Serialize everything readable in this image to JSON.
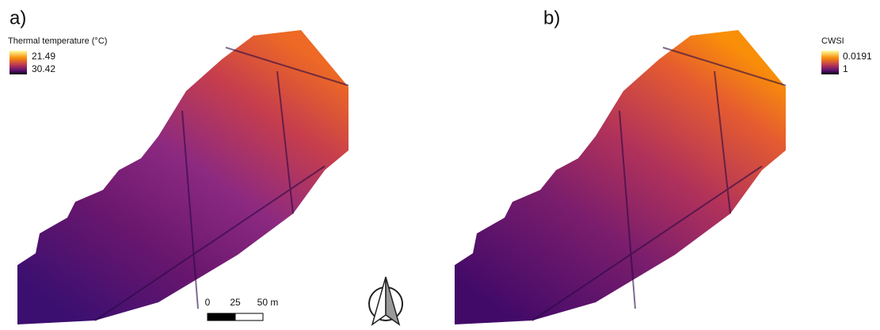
{
  "panels": [
    {
      "label": "a)",
      "legend": {
        "title": "Thermal temperature (°C)",
        "max_label": "21.49",
        "min_label": "30.42"
      }
    },
    {
      "label": "b)",
      "legend": {
        "title": "CWSI",
        "max_label": "0.0191",
        "min_label": "1"
      }
    }
  ],
  "scale_bar": {
    "labels": [
      "0",
      "25",
      "50 m"
    ]
  }
}
